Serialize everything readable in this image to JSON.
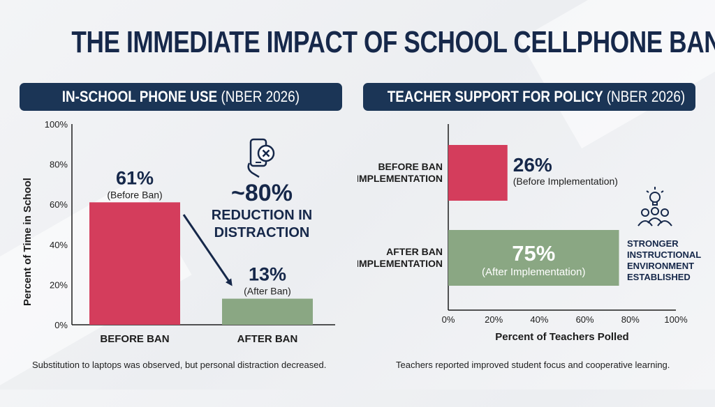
{
  "title": "THE IMMEDIATE IMPACT OF SCHOOL CELLPHONE BANS",
  "colors": {
    "navy": "#1b3556",
    "before": "#d43d5c",
    "after": "#8aa783",
    "axis": "#1c1c1c"
  },
  "panels": {
    "left": {
      "heading": "IN-SCHOOL PHONE USE",
      "source": "(NBER 2026)",
      "footnote": "Substitution to laptops was observed, but personal distraction decreased.",
      "callout": {
        "value": "~80%",
        "line1": "REDUCTION IN",
        "line2": "DISTRACTION",
        "icon": "phone-cross-icon"
      }
    },
    "right": {
      "heading": "TEACHER SUPPORT FOR POLICY",
      "source": "(NBER 2026)",
      "footnote": "Teachers reported improved student focus and cooperative learning.",
      "callout": {
        "line1": "STRONGER",
        "line2": "INSTRUCTIONAL",
        "line3": "ENVIRONMENT",
        "line4": "ESTABLISHED",
        "icon": "team-lightbulb-icon"
      }
    }
  },
  "chart_data": [
    {
      "type": "bar",
      "orientation": "vertical",
      "categories": [
        "BEFORE BAN",
        "AFTER BAN"
      ],
      "values": [
        61,
        13
      ],
      "value_labels": [
        "61%",
        "13%"
      ],
      "sub_labels": [
        "(Before Ban)",
        "(After Ban)"
      ],
      "ylabel": "Percent of Time in School",
      "xlabel": "",
      "ylim": [
        0,
        100
      ],
      "yticks": [
        "0%",
        "20%",
        "40%",
        "60%",
        "80%",
        "100%"
      ],
      "grid": false
    },
    {
      "type": "bar",
      "orientation": "horizontal",
      "categories": [
        [
          "BEFORE BAN",
          "IMPLEMENTATION"
        ],
        [
          "AFTER BAN",
          "IMPLEMENTATION"
        ]
      ],
      "values": [
        26,
        75
      ],
      "value_labels": [
        "26%",
        "75%"
      ],
      "sub_labels": [
        "(Before Implementation)",
        "(After Implementation)"
      ],
      "xlabel": "Percent of Teachers Polled",
      "ylabel": "",
      "xlim": [
        0,
        100
      ],
      "xticks": [
        "0%",
        "20%",
        "40%",
        "60%",
        "80%",
        "100%"
      ],
      "grid": false
    }
  ]
}
